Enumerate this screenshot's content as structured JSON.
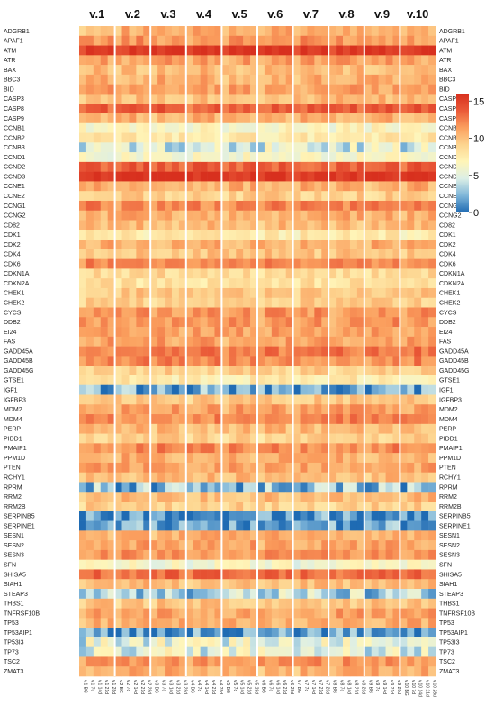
{
  "chart_data": {
    "type": "heatmap",
    "title": "",
    "xlabel": "",
    "ylabel": "",
    "groups": [
      "v.1",
      "v.2",
      "v.3",
      "v.4",
      "v.5",
      "v.6",
      "v.7",
      "v.8",
      "v.9",
      "v.10"
    ],
    "timepoints": [
      "BG",
      "7d",
      "14d",
      "21d",
      "28d"
    ],
    "genes": [
      "ADGRB1",
      "APAF1",
      "ATM",
      "ATR",
      "BAX",
      "BBC3",
      "BID",
      "CASP3",
      "CASP8",
      "CASP9",
      "CCNB1",
      "CCNB2",
      "CCNB3",
      "CCND1",
      "CCND2",
      "CCND3",
      "CCNE1",
      "CCNE2",
      "CCNG1",
      "CCNG2",
      "CD82",
      "CDK1",
      "CDK2",
      "CDK4",
      "CDK6",
      "CDKN1A",
      "CDKN2A",
      "CHEK1",
      "CHEK2",
      "CYCS",
      "DDB2",
      "EI24",
      "FAS",
      "GADD45A",
      "GADD45B",
      "GADD45G",
      "GTSE1",
      "IGF1",
      "IGFBP3",
      "MDM2",
      "MDM4",
      "PERP",
      "PIDD1",
      "PMAIP1",
      "PPM1D",
      "PTEN",
      "RCHY1",
      "RPRM",
      "RRM2",
      "RRM2B",
      "SERPINB5",
      "SERPINE1",
      "SESN1",
      "SESN2",
      "SESN3",
      "SFN",
      "SHISA5",
      "SIAH1",
      "STEAP3",
      "THBS1",
      "TNFRSF10B",
      "TP53",
      "TP53AIP1",
      "TP53I3",
      "TP73",
      "TSC2",
      "ZMAT3"
    ],
    "gene_mean_values": [
      10.5,
      11.5,
      15.5,
      11.0,
      10.0,
      10.5,
      11.0,
      10.0,
      13.5,
      10.5,
      6.5,
      7.5,
      4.5,
      6.0,
      13.5,
      15.5,
      10.5,
      9.0,
      12.0,
      10.5,
      10.0,
      7.5,
      10.5,
      9.5,
      12.0,
      8.5,
      8.0,
      9.5,
      9.0,
      11.5,
      11.5,
      11.0,
      11.0,
      12.5,
      12.0,
      9.0,
      7.5,
      1.5,
      9.5,
      11.0,
      12.0,
      10.0,
      9.0,
      12.0,
      10.5,
      11.0,
      10.0,
      2.5,
      10.0,
      9.0,
      1.0,
      1.5,
      10.5,
      11.0,
      11.5,
      6.0,
      13.0,
      10.0,
      3.5,
      9.5,
      11.0,
      10.5,
      1.0,
      5.0,
      5.0,
      11.5,
      10.5
    ],
    "colorbar": {
      "min": 0,
      "max": 16,
      "ticks": [
        0,
        5,
        10,
        15
      ],
      "colors": [
        "#1f6bb3",
        "#7fb6d9",
        "#dcefe6",
        "#fff5b8",
        "#fdd48f",
        "#fb9f5e",
        "#ea5a38",
        "#d8301e"
      ]
    },
    "grid": false,
    "legend_position": "right"
  }
}
